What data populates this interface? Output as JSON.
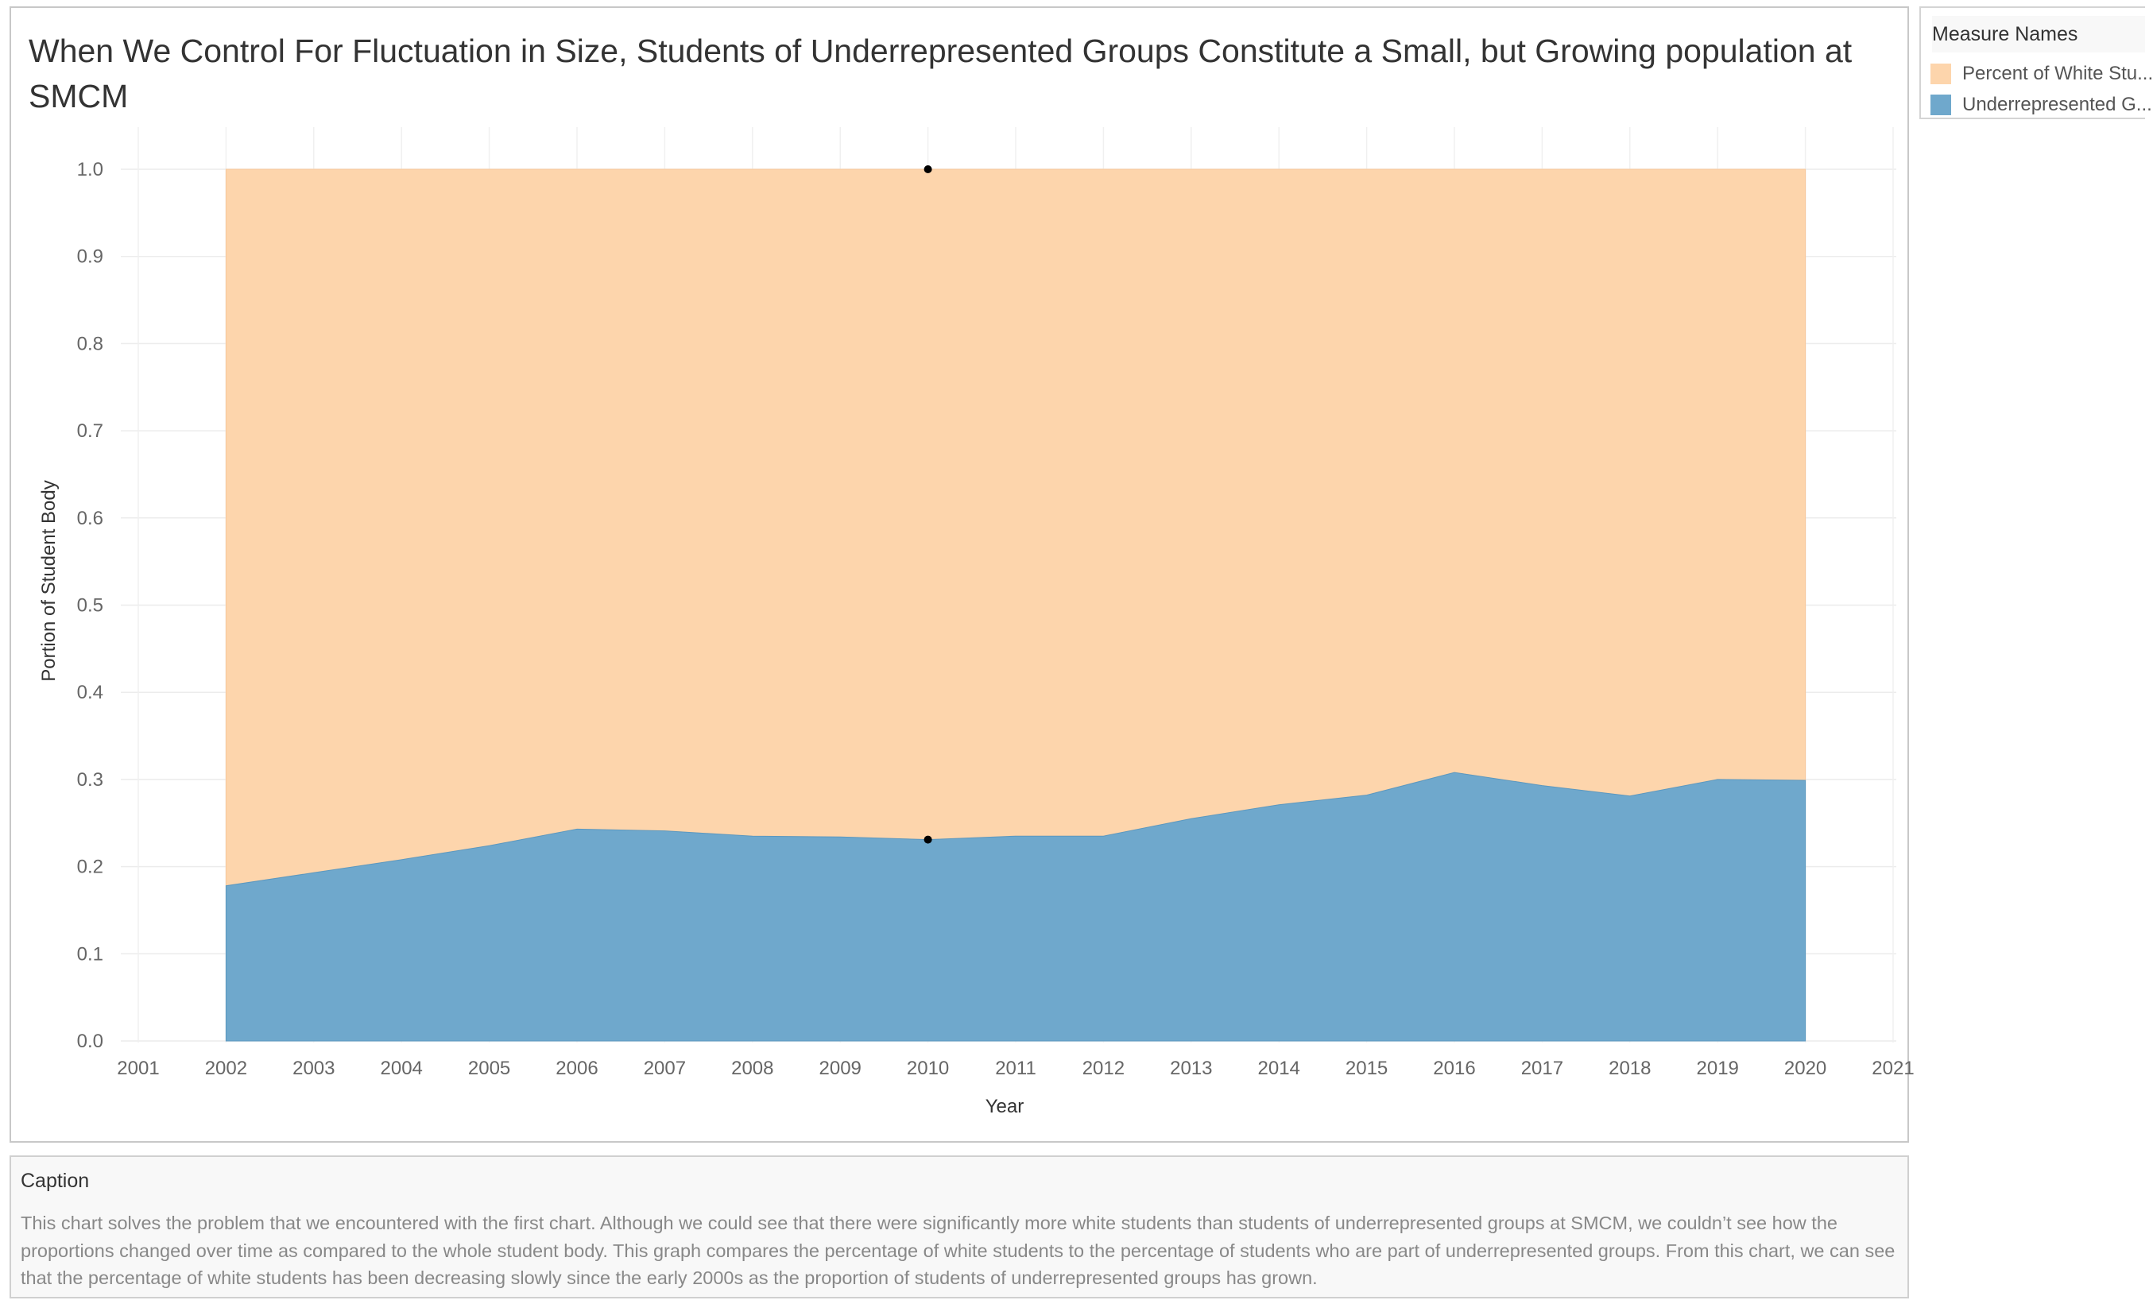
{
  "chart": {
    "title": "When We Control For Fluctuation in Size, Students of Underrepresented Groups Constitute a Small, but Growing population at SMCM"
  },
  "legend": {
    "title": "Measure Names",
    "items": [
      {
        "label": "Percent of White Stu...",
        "color": "#fdd5ac"
      },
      {
        "label": "Underrepresented G...",
        "color": "#6fa8cc"
      }
    ]
  },
  "caption": {
    "title": "Caption",
    "text": "This chart solves the problem that we encountered with the first chart. Although we could see that there were significantly more white students than students of underrepresented groups at SMCM, we couldn’t see how the proportions changed over time as compared to the whole student body. This graph compares the percentage of white students to the percentage of students who are part of underrepresented groups. From this chart, we can see that the percentage of white students has been decreasing slowly since the early 2000s as the proportion of students of underrepresented groups has grown."
  },
  "chart_data": {
    "type": "area",
    "stacked": true,
    "xlabel": "Year",
    "ylabel": "Portion of Student Body",
    "xlim": [
      2001,
      2021
    ],
    "ylim": [
      0,
      1.0
    ],
    "x_ticks": [
      2001,
      2002,
      2003,
      2004,
      2005,
      2006,
      2007,
      2008,
      2009,
      2010,
      2011,
      2012,
      2013,
      2014,
      2015,
      2016,
      2017,
      2018,
      2019,
      2020,
      2021
    ],
    "y_ticks": [
      "0.0",
      "0.1",
      "0.2",
      "0.3",
      "0.4",
      "0.5",
      "0.6",
      "0.7",
      "0.8",
      "0.9",
      "1.0"
    ],
    "grid": true,
    "legend_position": "right",
    "x": [
      2002,
      2003,
      2004,
      2005,
      2006,
      2007,
      2008,
      2009,
      2010,
      2011,
      2012,
      2013,
      2014,
      2015,
      2016,
      2017,
      2018,
      2019,
      2020
    ],
    "series": [
      {
        "name": "Underrepresented G...",
        "color": "#6fa8cc",
        "values": [
          0.178,
          0.193,
          0.208,
          0.224,
          0.243,
          0.241,
          0.235,
          0.234,
          0.231,
          0.235,
          0.235,
          0.255,
          0.271,
          0.282,
          0.308,
          0.293,
          0.281,
          0.3,
          0.299
        ]
      },
      {
        "name": "Percent of White Stu...",
        "color": "#fdd5ac",
        "values": [
          0.822,
          0.807,
          0.792,
          0.776,
          0.757,
          0.759,
          0.765,
          0.766,
          0.769,
          0.765,
          0.765,
          0.745,
          0.729,
          0.718,
          0.692,
          0.707,
          0.719,
          0.7,
          0.701
        ]
      }
    ],
    "highlight_x": 2010
  }
}
